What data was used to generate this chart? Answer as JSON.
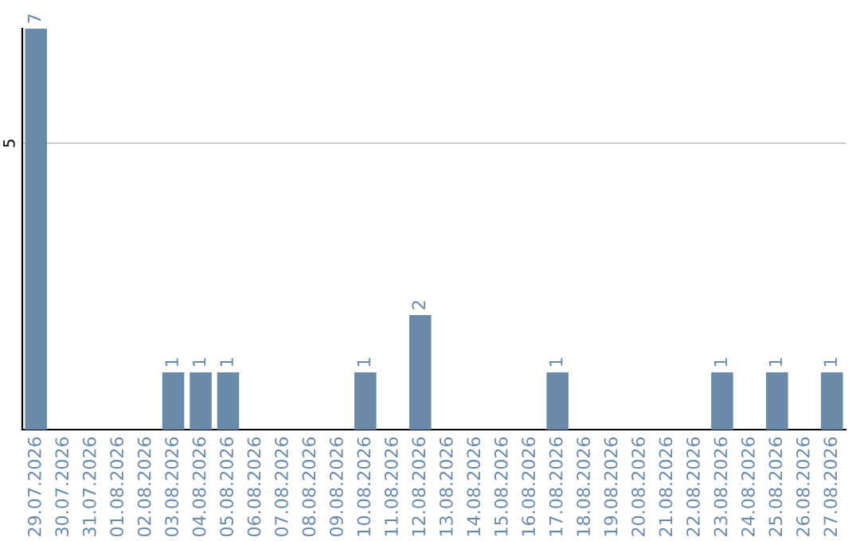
{
  "chart_data": {
    "type": "bar",
    "categories": [
      "29.07.2026",
      "30.07.2026",
      "31.07.2026",
      "01.08.2026",
      "02.08.2026",
      "03.08.2026",
      "04.08.2026",
      "05.08.2026",
      "06.08.2026",
      "07.08.2026",
      "08.08.2026",
      "09.08.2026",
      "10.08.2026",
      "11.08.2026",
      "12.08.2026",
      "13.08.2026",
      "14.08.2026",
      "15.08.2026",
      "16.08.2026",
      "17.08.2026",
      "18.08.2026",
      "19.08.2026",
      "20.08.2026",
      "21.08.2026",
      "22.08.2026",
      "23.08.2026",
      "24.08.2026",
      "25.08.2026",
      "26.08.2026",
      "27.08.2026"
    ],
    "values": [
      7,
      0,
      0,
      0,
      0,
      1,
      1,
      1,
      0,
      0,
      0,
      0,
      1,
      0,
      2,
      0,
      0,
      0,
      0,
      1,
      0,
      0,
      0,
      0,
      0,
      1,
      0,
      1,
      0,
      1
    ],
    "value_labels": [
      "7",
      null,
      null,
      null,
      null,
      "1",
      "1",
      "1",
      null,
      null,
      null,
      null,
      "1",
      null,
      "2",
      null,
      null,
      null,
      null,
      "1",
      null,
      null,
      null,
      null,
      null,
      "1",
      null,
      "1",
      null,
      "1"
    ],
    "color": "#6a8aaa",
    "ylim": [
      0,
      7
    ],
    "yticks": [
      5
    ],
    "grid": "y"
  }
}
